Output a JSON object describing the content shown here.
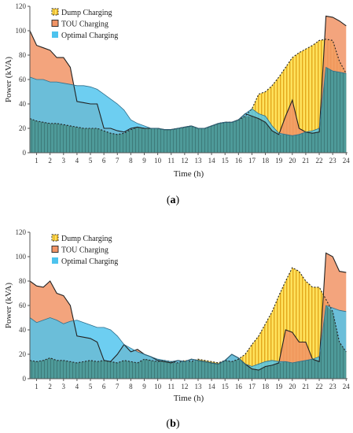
{
  "figure": {
    "legend": {
      "dump": "Dump Charging",
      "tou": "TOU Charging",
      "optimal": "Optimal Charging"
    },
    "colors": {
      "optimal": "#4dc3ee",
      "tou": "#f19466",
      "dump_fill": "#ffe25c",
      "dump_stripe": "#e4a81c",
      "base": "#4e9a99",
      "base_stripe": "#3d7b7a",
      "axis": "#555555"
    }
  },
  "chart_data": [
    {
      "type": "area",
      "panel_label": "a",
      "xlabel": "Time (h)",
      "ylabel": "Power (kVA)",
      "xlim": [
        0.5,
        24.1
      ],
      "ylim": [
        0,
        120
      ],
      "xticks": [
        1,
        2,
        3,
        4,
        5,
        6,
        7,
        8,
        9,
        10,
        11,
        12,
        13,
        14,
        15,
        16,
        17,
        18,
        19,
        20,
        21,
        22,
        23,
        24
      ],
      "yticks": [
        0,
        20,
        40,
        60,
        80,
        100,
        120
      ],
      "grid": false,
      "legend_position": "top-left",
      "x": [
        0.5,
        1,
        1.5,
        2,
        2.5,
        3,
        3.5,
        4,
        4.5,
        5,
        5.5,
        6,
        6.5,
        7,
        7.5,
        8,
        8.5,
        9,
        9.5,
        10,
        10.5,
        11,
        11.5,
        12,
        12.5,
        13,
        13.5,
        14,
        14.5,
        15,
        15.5,
        16,
        16.5,
        17,
        17.5,
        18,
        18.5,
        19,
        19.5,
        20,
        20.5,
        21,
        21.5,
        22,
        22.5,
        23,
        23.5,
        24
      ],
      "series": [
        {
          "name": "Dump Charging",
          "values": [
            28,
            26,
            25,
            24,
            24,
            23,
            22,
            21,
            20,
            20,
            20,
            18,
            16,
            15,
            16,
            19,
            21,
            20,
            20,
            20,
            19,
            19,
            20,
            21,
            22,
            20,
            20,
            22,
            24,
            25,
            25,
            27,
            30,
            36,
            48,
            50,
            55,
            62,
            70,
            78,
            82,
            85,
            88,
            92,
            93,
            92,
            75,
            65
          ]
        },
        {
          "name": "TOU Charging",
          "values": [
            100,
            88,
            86,
            84,
            78,
            78,
            70,
            42,
            41,
            40,
            40,
            20,
            20,
            18,
            17,
            20,
            21,
            20,
            20,
            20,
            19,
            19,
            20,
            21,
            22,
            20,
            20,
            22,
            24,
            25,
            25,
            27,
            32,
            30,
            28,
            25,
            18,
            15,
            30,
            43,
            20,
            17,
            16,
            17,
            112,
            111,
            108,
            104
          ]
        },
        {
          "name": "Optimal Charging",
          "values": [
            62,
            60,
            60,
            58,
            58,
            57,
            56,
            55,
            55,
            54,
            52,
            48,
            44,
            40,
            35,
            27,
            24,
            22,
            20,
            20,
            19,
            19,
            20,
            21,
            22,
            20,
            20,
            22,
            24,
            25,
            25,
            27,
            32,
            36,
            32,
            30,
            22,
            16,
            15,
            14,
            15,
            17,
            18,
            20,
            70,
            67,
            66,
            65
          ]
        }
      ]
    },
    {
      "type": "area",
      "panel_label": "b",
      "xlabel": "Time (h)",
      "ylabel": "Power (kVA)",
      "xlim": [
        0.5,
        24.1
      ],
      "ylim": [
        0,
        120
      ],
      "xticks": [
        1,
        2,
        3,
        4,
        5,
        6,
        7,
        8,
        9,
        10,
        11,
        12,
        13,
        14,
        15,
        16,
        17,
        18,
        19,
        20,
        21,
        22,
        23,
        24
      ],
      "yticks": [
        0,
        20,
        40,
        60,
        80,
        100,
        120
      ],
      "grid": false,
      "legend_position": "top-left",
      "x": [
        0.5,
        1,
        1.5,
        2,
        2.5,
        3,
        3.5,
        4,
        4.5,
        5,
        5.5,
        6,
        6.5,
        7,
        7.5,
        8,
        8.5,
        9,
        9.5,
        10,
        10.5,
        11,
        11.5,
        12,
        12.5,
        13,
        13.5,
        14,
        14.5,
        15,
        15.5,
        16,
        16.5,
        17,
        17.5,
        18,
        18.5,
        19,
        19.5,
        20,
        20.5,
        21,
        21.5,
        22,
        22.5,
        23,
        23.5,
        24
      ],
      "series": [
        {
          "name": "Dump Charging",
          "values": [
            15,
            14,
            15,
            17,
            15,
            15,
            14,
            13,
            14,
            15,
            14,
            15,
            14,
            13,
            15,
            14,
            13,
            16,
            15,
            14,
            15,
            14,
            13,
            15,
            14,
            16,
            15,
            14,
            13,
            15,
            14,
            16,
            20,
            28,
            35,
            45,
            55,
            68,
            80,
            91,
            88,
            80,
            75,
            75,
            65,
            55,
            30,
            22
          ]
        },
        {
          "name": "TOU Charging",
          "values": [
            80,
            76,
            75,
            80,
            70,
            68,
            60,
            35,
            34,
            33,
            30,
            15,
            14,
            20,
            28,
            22,
            24,
            20,
            18,
            15,
            14,
            13,
            15,
            14,
            16,
            15,
            14,
            13,
            12,
            15,
            20,
            17,
            12,
            8,
            7,
            10,
            11,
            13,
            40,
            38,
            30,
            30,
            16,
            14,
            103,
            100,
            88,
            87
          ]
        },
        {
          "name": "Optimal Charging",
          "values": [
            50,
            46,
            48,
            50,
            48,
            45,
            47,
            48,
            46,
            44,
            42,
            42,
            40,
            35,
            28,
            25,
            22,
            20,
            18,
            16,
            15,
            14,
            15,
            14,
            16,
            15,
            14,
            13,
            12,
            15,
            20,
            17,
            12,
            10,
            12,
            14,
            15,
            14,
            14,
            13,
            14,
            15,
            16,
            18,
            60,
            58,
            56,
            55
          ]
        }
      ]
    }
  ]
}
